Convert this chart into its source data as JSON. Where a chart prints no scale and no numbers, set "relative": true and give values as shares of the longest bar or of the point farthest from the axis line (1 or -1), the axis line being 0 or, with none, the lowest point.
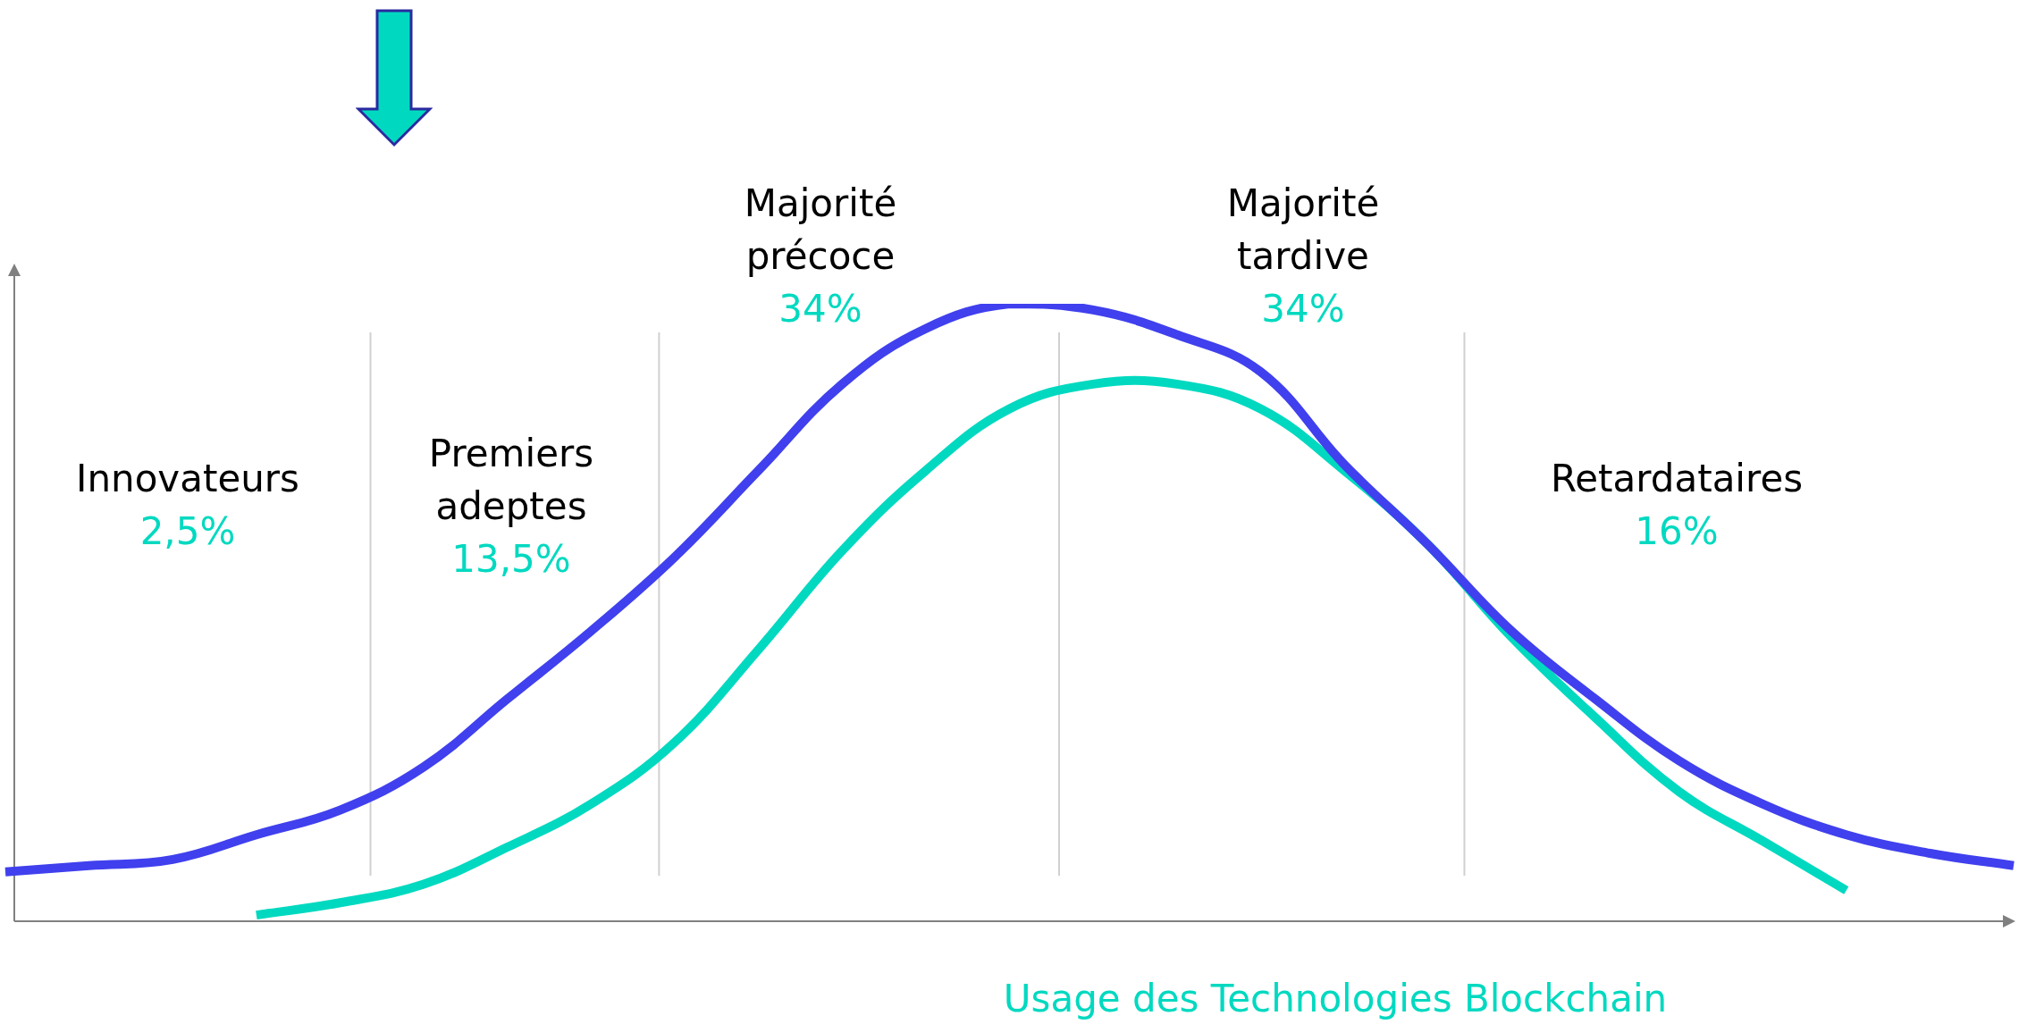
{
  "chart_data": {
    "type": "line",
    "relative": true,
    "xlabel": "Usage des Technologies Blockchain",
    "categories": [
      null,
      null,
      null,
      null,
      null,
      null,
      null,
      null,
      null,
      null,
      null,
      null,
      null,
      null,
      null,
      null,
      null,
      null,
      null,
      null,
      null,
      null,
      null,
      null,
      null
    ],
    "series": [
      {
        "color": "#4040ee",
        "values": [
          0.08,
          0.09,
          0.1,
          0.14,
          0.18,
          0.25,
          0.36,
          0.47,
          0.59,
          0.73,
          0.87,
          0.96,
          1.0,
          0.99,
          0.95,
          0.89,
          0.74,
          0.61,
          0.47,
          0.36,
          0.26,
          0.19,
          0.14,
          0.11,
          0.09
        ]
      },
      {
        "color": "#00d9c0",
        "values": [
          null,
          null,
          null,
          0.01,
          0.03,
          0.06,
          0.12,
          0.19,
          0.29,
          0.44,
          0.6,
          0.73,
          0.83,
          0.87,
          0.87,
          0.83,
          0.73,
          0.61,
          0.46,
          0.33,
          0.21,
          0.13,
          0.05,
          null,
          null
        ]
      }
    ],
    "annotations": [
      "Innovateurs",
      "2,5%",
      "Premiers adeptes",
      "13,5%",
      "Majorité précoce",
      "34%",
      "Majorité tardive",
      "34%",
      "Retardataires",
      "16%"
    ],
    "legend": false,
    "marker": "none",
    "line_style": "solid"
  }
}
